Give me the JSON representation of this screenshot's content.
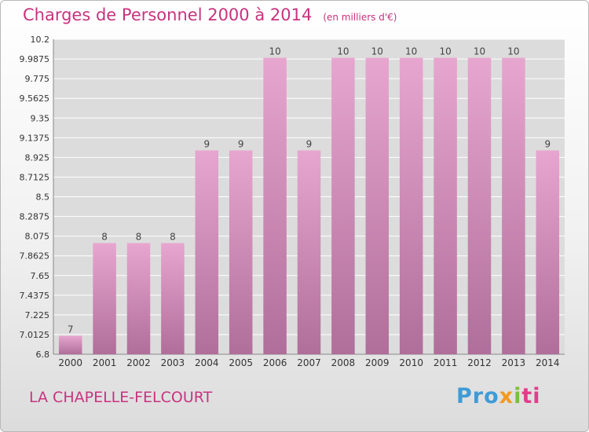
{
  "header": {
    "title": "Charges de Personnel 2000 à 2014",
    "subtitle": "(en milliers d'€)"
  },
  "footer": {
    "location": "LA CHAPELLE-FELCOURT",
    "logo_parts": [
      "Pro",
      "x",
      "i",
      "ti"
    ]
  },
  "colors": {
    "bar_top": "#e7a6cf",
    "bar_bottom": "#b06e9a",
    "accent": "#c8337f"
  },
  "chart_data": {
    "type": "bar",
    "title": "Charges de Personnel 2000 à 2014",
    "subtitle": "(en milliers d'€)",
    "categories": [
      "2000",
      "2001",
      "2002",
      "2003",
      "2004",
      "2005",
      "2006",
      "2007",
      "2008",
      "2009",
      "2010",
      "2011",
      "2012",
      "2013",
      "2014"
    ],
    "values": [
      7,
      8,
      8,
      8,
      9,
      9,
      10,
      9,
      10,
      10,
      10,
      10,
      10,
      10,
      9
    ],
    "data_labels": [
      "7",
      "8",
      "8",
      "8",
      "9",
      "9",
      "10",
      "9",
      "10",
      "10",
      "10",
      "10",
      "10",
      "10",
      "9"
    ],
    "ylim": [
      6.8,
      10.2
    ],
    "yticks": [
      "6.8",
      "7.0125",
      "7.225",
      "7.4375",
      "7.65",
      "7.8625",
      "8.075",
      "8.2875",
      "8.5",
      "8.7125",
      "8.925",
      "9.1375",
      "9.35",
      "9.5625",
      "9.775",
      "9.9875",
      "10.2"
    ],
    "grid": true,
    "legend": "none"
  }
}
